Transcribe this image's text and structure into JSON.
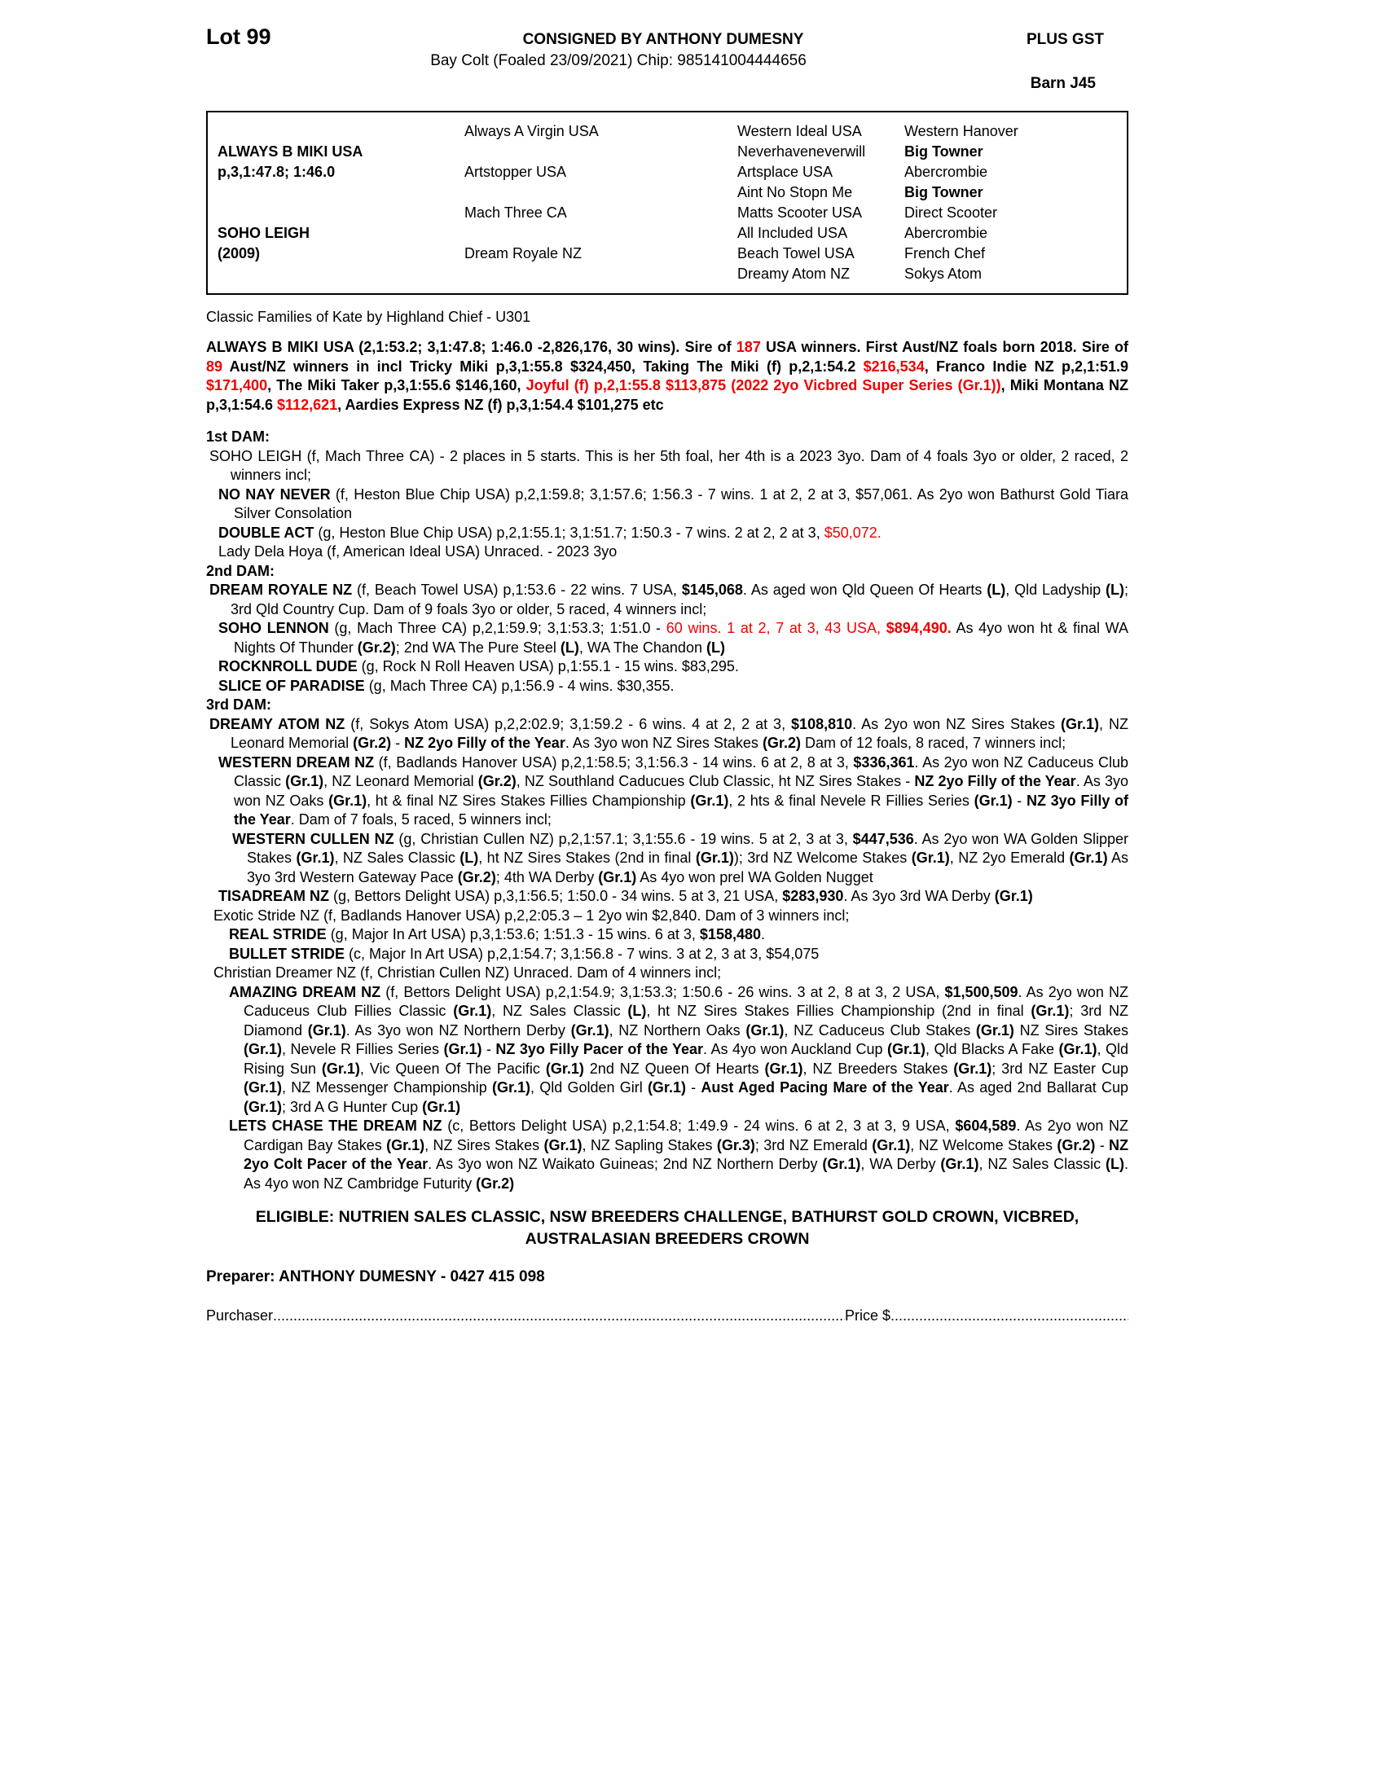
{
  "header": {
    "lot": "Lot 99",
    "consigned": "CONSIGNED BY ANTHONY DUMESNY",
    "plus_gst": "PLUS GST",
    "subtitle": "Bay Colt (Foaled 23/09/2021) Chip: 985141004444656",
    "barn": "Barn J45"
  },
  "pedigree": {
    "col1": [
      {
        "r": 2,
        "t": "ALWAYS B MIKI USA"
      },
      {
        "r": 3,
        "t": "p,3,1:47.8; 1:46.0"
      },
      {
        "r": 6,
        "t": "SOHO LEIGH"
      },
      {
        "r": 7,
        "t": "(2009)"
      }
    ],
    "col2": [
      {
        "r": 1,
        "t": "Always A Virgin USA"
      },
      {
        "r": 3,
        "t": "Artstopper USA"
      },
      {
        "r": 5,
        "t": "Mach Three CA"
      },
      {
        "r": 7,
        "t": "Dream Royale NZ"
      }
    ],
    "col3": [
      "Western Ideal USA",
      "Neverhaveneverwill",
      "Artsplace USA",
      "Aint No Stopn Me",
      "Matts Scooter USA",
      "All Included USA",
      "Beach Towel USA",
      "Dreamy Atom NZ"
    ],
    "col4": [
      {
        "t": "Western Hanover"
      },
      {
        "t": "Big Towner",
        "b": true
      },
      {
        "t": "Abercrombie"
      },
      {
        "t": "Big Towner",
        "b": true
      },
      {
        "t": "Direct Scooter"
      },
      {
        "t": "Abercrombie"
      },
      {
        "t": "French Chef"
      },
      {
        "t": "Sokys Atom"
      }
    ]
  },
  "family_line": "Classic Families of Kate by Highland Chief - U301",
  "sire_paragraph": [
    [
      "ALWAYS B MIKI USA (2,1:53.2; 3,1:47.8; 1:46.0 -2,826,176, 30 wins). Sire of ",
      "b"
    ],
    [
      "187",
      "br"
    ],
    [
      " USA winners. First Aust/NZ foals born 2018. Sire of ",
      "b"
    ],
    [
      "89",
      "br"
    ],
    [
      " Aust/NZ winners in incl Tricky Miki p,3,1:55.8 $324,450, Taking The Miki (f) p,2,1:54.2 ",
      "b"
    ],
    [
      "$216,534",
      "br"
    ],
    [
      ", Franco Indie NZ p,2,1:51.9 ",
      "b"
    ],
    [
      "$171,400",
      "br"
    ],
    [
      ", The Miki Taker p,3,1:55.6 $146,160, ",
      "b"
    ],
    [
      "Joyful (f) p,2,1:55.8 $113,875 (2022 2yo Vicbred Super Series (Gr.1))",
      "br"
    ],
    [
      ", Miki Montana NZ p,3,1:54.6 ",
      "b"
    ],
    [
      "$112,621",
      "br"
    ],
    [
      ", Aardies Express NZ (f) p,3,1:54.4 $101,275 etc",
      "b"
    ]
  ],
  "dams": [
    {
      "label": "1st DAM:",
      "entries": [
        {
          "cls": "e-d0",
          "segs": [
            [
              "SOHO LEIGH (f, Mach Three CA) - 2 places in 5 starts. This is her 5th foal, her 4th is a 2023 3yo. Dam of 4 foals 3yo or older, 2 raced, 2 winners incl;",
              ""
            ]
          ]
        },
        {
          "cls": "e-d1",
          "segs": [
            [
              "NO NAY NEVER",
              "b"
            ],
            [
              " (f, Heston Blue Chip USA) p,2,1:59.8; 3,1:57.6; 1:56.3 - 7 wins. 1 at 2, 2 at 3, $57,061. As 2yo won Bathurst Gold Tiara Silver Consolation",
              ""
            ]
          ]
        },
        {
          "cls": "e-d1",
          "segs": [
            [
              "DOUBLE ACT",
              "b"
            ],
            [
              " (g, Heston Blue Chip USA) p,2,1:55.1; 3,1:51.7; 1:50.3 - 7 wins. 2 at 2, 2 at 3, ",
              ""
            ],
            [
              "$50,072.",
              "r"
            ]
          ]
        },
        {
          "cls": "e-d1",
          "segs": [
            [
              "Lady Dela Hoya (f, American Ideal USA) Unraced. - 2023 3yo",
              ""
            ]
          ]
        }
      ]
    },
    {
      "label": "2nd DAM:",
      "entries": [
        {
          "cls": "e-d0",
          "segs": [
            [
              "DREAM ROYALE NZ",
              "b"
            ],
            [
              " (f, Beach Towel USA) p,1:53.6 - 22 wins. 7 USA, ",
              ""
            ],
            [
              "$145,068",
              "b"
            ],
            [
              ". As aged won Qld Queen Of Hearts ",
              ""
            ],
            [
              "(L)",
              "b"
            ],
            [
              ", Qld Ladyship ",
              ""
            ],
            [
              "(L)",
              "b"
            ],
            [
              "; 3rd Qld Country Cup. Dam of 9 foals 3yo or older, 5 raced, 4 winners incl;",
              ""
            ]
          ]
        },
        {
          "cls": "e-d1",
          "segs": [
            [
              "SOHO LENNON",
              "b"
            ],
            [
              " (g, Mach Three CA) p,2,1:59.9; 3,1:53.3; 1:51.0 - ",
              ""
            ],
            [
              "60 wins. 1 at 2, 7 at 3, 43 USA, ",
              "r"
            ],
            [
              "$894,490.",
              "br"
            ],
            [
              " As 4yo won ht & final WA Nights Of Thunder ",
              ""
            ],
            [
              "(Gr.2)",
              "b"
            ],
            [
              "; 2nd WA The Pure Steel ",
              ""
            ],
            [
              "(L)",
              "b"
            ],
            [
              ", WA The Chandon ",
              ""
            ],
            [
              "(L)",
              "b"
            ]
          ]
        },
        {
          "cls": "e-d1",
          "segs": [
            [
              "ROCKNROLL DUDE",
              "b"
            ],
            [
              " (g, Rock N Roll Heaven USA) p,1:55.1 - 15 wins. $83,295.",
              ""
            ]
          ]
        },
        {
          "cls": "e-d1",
          "segs": [
            [
              "SLICE OF PARADISE",
              "b"
            ],
            [
              " (g, Mach Three CA) p,1:56.9 - 4 wins. $30,355.",
              ""
            ]
          ]
        }
      ]
    },
    {
      "label": "3rd DAM:",
      "entries": [
        {
          "cls": "e-d0",
          "segs": [
            [
              "DREAMY ATOM NZ",
              "b"
            ],
            [
              " (f, Sokys Atom USA) p,2,2:02.9; 3,1:59.2 - 6 wins. 4 at 2, 2 at 3, ",
              ""
            ],
            [
              "$108,810",
              "b"
            ],
            [
              ". As 2yo won NZ Sires Stakes ",
              ""
            ],
            [
              "(Gr.1)",
              "b"
            ],
            [
              ", NZ Leonard Memorial ",
              ""
            ],
            [
              "(Gr.2)",
              "b"
            ],
            [
              " - ",
              ""
            ],
            [
              "NZ 2yo Filly of the Year",
              "b"
            ],
            [
              ". As 3yo won NZ Sires Stakes ",
              ""
            ],
            [
              "(Gr.2)",
              "b"
            ],
            [
              " Dam of 12 foals, 8 raced, 7 winners incl;",
              ""
            ]
          ]
        },
        {
          "cls": "e-d1",
          "segs": [
            [
              "WESTERN DREAM NZ",
              "b"
            ],
            [
              " (f, Badlands Hanover USA) p,2,1:58.5; 3,1:56.3 - 14 wins. 6 at 2, 8 at 3, ",
              ""
            ],
            [
              "$336,361",
              "b"
            ],
            [
              ". As 2yo won NZ Caduceus Club Classic ",
              ""
            ],
            [
              "(Gr.1)",
              "b"
            ],
            [
              ", NZ Leonard Memorial ",
              ""
            ],
            [
              "(Gr.2)",
              "b"
            ],
            [
              ", NZ Southland Caducues Club Classic, ht NZ Sires Stakes - ",
              ""
            ],
            [
              "NZ 2yo Filly of the Year",
              "b"
            ],
            [
              ". As 3yo won NZ Oaks ",
              ""
            ],
            [
              "(Gr.1)",
              "b"
            ],
            [
              ", ht & final NZ Sires Stakes Fillies Championship ",
              ""
            ],
            [
              "(Gr.1)",
              "b"
            ],
            [
              ", 2 hts & final Nevele R Fillies Series ",
              ""
            ],
            [
              "(Gr.1)",
              "b"
            ],
            [
              " - ",
              ""
            ],
            [
              "NZ 3yo Filly of the Year",
              "b"
            ],
            [
              ". Dam of 7 foals, 5 raced, 5 winners incl;",
              ""
            ]
          ]
        },
        {
          "cls": "e-d2",
          "segs": [
            [
              "WESTERN CULLEN NZ",
              "b"
            ],
            [
              " (g, Christian Cullen NZ) p,2,1:57.1; 3,1:55.6 - 19 wins. 5 at 2, 3 at 3, ",
              ""
            ],
            [
              "$447,536",
              "b"
            ],
            [
              ". As 2yo won WA Golden Slipper Stakes ",
              ""
            ],
            [
              "(Gr.1)",
              "b"
            ],
            [
              ", NZ Sales Classic ",
              ""
            ],
            [
              "(L)",
              "b"
            ],
            [
              ", ht NZ Sires Stakes (2nd in final ",
              ""
            ],
            [
              "(Gr.1)",
              "b"
            ],
            [
              "); 3rd NZ Welcome Stakes ",
              ""
            ],
            [
              "(Gr.1)",
              "b"
            ],
            [
              ", NZ 2yo Emerald ",
              ""
            ],
            [
              "(Gr.1)",
              "b"
            ],
            [
              " As 3yo 3rd Western Gateway Pace ",
              ""
            ],
            [
              "(Gr.2)",
              "b"
            ],
            [
              "; 4th WA Derby ",
              ""
            ],
            [
              "(Gr.1)",
              "b"
            ],
            [
              " As 4yo won prel WA Golden Nugget",
              ""
            ]
          ]
        },
        {
          "cls": "e-d1",
          "segs": [
            [
              "TISADREAM NZ",
              "b"
            ],
            [
              " (g, Bettors Delight USA) p,3,1:56.5; 1:50.0 - 34 wins. 5 at 3, 21 USA, ",
              ""
            ],
            [
              "$283,930",
              "b"
            ],
            [
              ". As 3yo 3rd WA Derby ",
              ""
            ],
            [
              "(Gr.1)",
              "b"
            ]
          ]
        },
        {
          "cls": "e-u1",
          "segs": [
            [
              "Exotic Stride NZ (f, Badlands Hanover USA) p,2,2:05.3 – 1 2yo win $2,840. Dam of 3 winners incl;",
              ""
            ]
          ]
        },
        {
          "cls": "e-u2",
          "segs": [
            [
              "REAL STRIDE",
              "b"
            ],
            [
              " (g, Major In Art USA) p,3,1:53.6; 1:51.3 - 15 wins. 6 at 3, ",
              ""
            ],
            [
              "$158,480",
              "b"
            ],
            [
              ".",
              ""
            ]
          ]
        },
        {
          "cls": "e-u2",
          "segs": [
            [
              "BULLET STRIDE",
              "b"
            ],
            [
              " (c, Major In Art USA) p,2,1:54.7; 3,1:56.8 - 7 wins. 3 at 2, 3 at 3, $54,075",
              ""
            ]
          ]
        },
        {
          "cls": "e-u1",
          "segs": [
            [
              "Christian Dreamer NZ (f, Christian Cullen NZ) Unraced. Dam of 4 winners incl;",
              ""
            ]
          ]
        },
        {
          "cls": "e-u2",
          "segs": [
            [
              "AMAZING DREAM NZ",
              "b"
            ],
            [
              " (f, Bettors Delight USA) p,2,1:54.9; 3,1:53.3; 1:50.6 - 26 wins. 3 at 2, 8 at 3, 2 USA, ",
              ""
            ],
            [
              "$1,500,509",
              "b"
            ],
            [
              ". As 2yo won NZ Caduceus Club Fillies Classic ",
              ""
            ],
            [
              "(Gr.1)",
              "b"
            ],
            [
              ", NZ Sales Classic ",
              ""
            ],
            [
              "(L)",
              "b"
            ],
            [
              ", ht NZ Sires Stakes Fillies Championship (2nd in final ",
              ""
            ],
            [
              "(Gr.1)",
              "b"
            ],
            [
              "; 3rd NZ Diamond ",
              ""
            ],
            [
              "(Gr.1)",
              "b"
            ],
            [
              ". As 3yo won NZ Northern Derby ",
              ""
            ],
            [
              "(Gr.1)",
              "b"
            ],
            [
              ", NZ Northern Oaks ",
              ""
            ],
            [
              "(Gr.1)",
              "b"
            ],
            [
              ", NZ Caduceus Club Stakes ",
              ""
            ],
            [
              "(Gr.1)",
              "b"
            ],
            [
              " NZ Sires Stakes ",
              ""
            ],
            [
              "(Gr.1)",
              "b"
            ],
            [
              ", Nevele R Fillies Series ",
              ""
            ],
            [
              "(Gr.1)",
              "b"
            ],
            [
              " - ",
              ""
            ],
            [
              "NZ 3yo Filly Pacer of the Year",
              "b"
            ],
            [
              ". As 4yo won Auckland Cup ",
              ""
            ],
            [
              "(Gr.1)",
              "b"
            ],
            [
              ", Qld Blacks A Fake ",
              ""
            ],
            [
              "(Gr.1)",
              "b"
            ],
            [
              ", Qld Rising Sun ",
              ""
            ],
            [
              "(Gr.1)",
              "b"
            ],
            [
              ", Vic Queen Of The Pacific ",
              ""
            ],
            [
              "(Gr.1)",
              "b"
            ],
            [
              " 2nd NZ Queen Of Hearts ",
              ""
            ],
            [
              "(Gr.1)",
              "b"
            ],
            [
              ", NZ Breeders Stakes ",
              ""
            ],
            [
              "(Gr.1)",
              "b"
            ],
            [
              "; 3rd NZ Easter Cup ",
              ""
            ],
            [
              "(Gr.1)",
              "b"
            ],
            [
              ", NZ Messenger Championship ",
              ""
            ],
            [
              "(Gr.1)",
              "b"
            ],
            [
              ", Qld Golden Girl ",
              ""
            ],
            [
              "(Gr.1)",
              "b"
            ],
            [
              " - ",
              ""
            ],
            [
              "Aust Aged Pacing Mare of the Year",
              "b"
            ],
            [
              ". As aged 2nd Ballarat Cup ",
              ""
            ],
            [
              "(Gr.1)",
              "b"
            ],
            [
              "; 3rd A G Hunter Cup ",
              ""
            ],
            [
              "(Gr.1)",
              "b"
            ]
          ]
        },
        {
          "cls": "e-u2",
          "segs": [
            [
              "LETS CHASE THE DREAM NZ",
              "b"
            ],
            [
              " (c, Bettors Delight USA) p,2,1:54.8; 1:49.9 - 24 wins. 6 at 2, 3 at 3, 9 USA, ",
              ""
            ],
            [
              "$604,589",
              "b"
            ],
            [
              ". As 2yo won NZ Cardigan Bay Stakes ",
              ""
            ],
            [
              "(Gr.1)",
              "b"
            ],
            [
              ", NZ Sires Stakes ",
              ""
            ],
            [
              "(Gr.1)",
              "b"
            ],
            [
              ", NZ Sapling Stakes ",
              ""
            ],
            [
              "(Gr.3)",
              "b"
            ],
            [
              "; 3rd NZ Emerald ",
              ""
            ],
            [
              "(Gr.1)",
              "b"
            ],
            [
              ", NZ Welcome Stakes ",
              ""
            ],
            [
              "(Gr.2)",
              "b"
            ],
            [
              " - ",
              ""
            ],
            [
              "NZ 2yo Colt Pacer of the Year",
              "b"
            ],
            [
              ". As 3yo won NZ Waikato Guineas; 2nd NZ Northern Derby ",
              ""
            ],
            [
              "(Gr.1)",
              "b"
            ],
            [
              ", WA Derby ",
              ""
            ],
            [
              "(Gr.1)",
              "b"
            ],
            [
              ", NZ Sales Classic ",
              ""
            ],
            [
              "(L)",
              "b"
            ],
            [
              ". As 4yo won NZ Cambridge Futurity ",
              ""
            ],
            [
              "(Gr.2)",
              "b"
            ]
          ]
        }
      ]
    }
  ],
  "eligible": "ELIGIBLE: NUTRIEN SALES CLASSIC, NSW BREEDERS CHALLENGE, BATHURST GOLD CROWN, VICBRED, AUSTRALASIAN BREEDERS CROWN",
  "preparer": "Preparer: ANTHONY DUMESNY - 0427 415 098",
  "footer": {
    "purchaser_label": "Purchaser",
    "dots1": "....................................................................................................................................................................................",
    "price_label": "Price $",
    "dots2": "...................................................................................."
  },
  "colors": {
    "accent_red": "#ee0000",
    "text": "#000000"
  }
}
